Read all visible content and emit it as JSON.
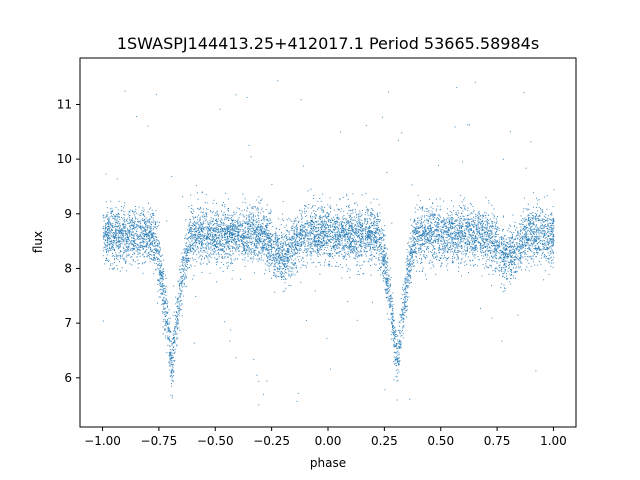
{
  "chart_data": {
    "type": "scatter",
    "title": "1SWASPJ144413.25+412017.1 Period 53665.58984s",
    "xlabel": "phase",
    "ylabel": "flux",
    "xlim": [
      -1.1,
      1.1
    ],
    "ylim": [
      5.1,
      11.85
    ],
    "x_ticks": [
      -1.0,
      -0.75,
      -0.5,
      -0.25,
      0.0,
      0.25,
      0.5,
      0.75,
      1.0
    ],
    "x_tick_labels": [
      "−1.00",
      "−0.75",
      "−0.50",
      "−0.25",
      "0.00",
      "0.25",
      "0.50",
      "0.75",
      "1.00"
    ],
    "y_ticks": [
      6,
      7,
      8,
      9,
      10,
      11
    ],
    "y_tick_labels": [
      "6",
      "7",
      "8",
      "9",
      "10",
      "11"
    ],
    "grid": false,
    "legend": "none",
    "marker_color": "#1f77b4",
    "light_curve": {
      "baseline_flux": 8.62,
      "primary_eclipses": [
        {
          "phase": -0.695,
          "min_flux": 6.2,
          "half_width": 0.09
        },
        {
          "phase": 0.305,
          "min_flux": 6.2,
          "half_width": 0.09
        }
      ],
      "secondary_dips": [
        {
          "phase": -0.205,
          "min_flux": 8.25,
          "half_width": 0.1
        },
        {
          "phase": 0.795,
          "min_flux": 8.25,
          "half_width": 0.1
        }
      ],
      "phase_range": [
        -1.0,
        1.0
      ],
      "scatter_sigma": 0.25,
      "outlier_range": [
        5.5,
        11.5
      ]
    }
  }
}
